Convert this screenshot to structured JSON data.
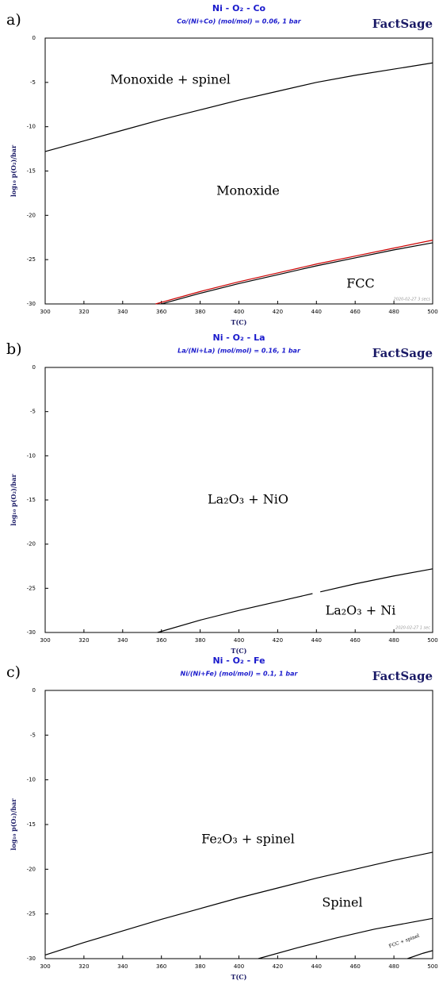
{
  "chart_data": [
    {
      "type": "line",
      "panel_label": "a)",
      "title": "Ni - O₂ - Co",
      "subtitle": "Co/(Ni+Co) (mol/mol) = 0.06, 1 bar",
      "logo": "FactSage",
      "note": "2020-02-27  3 secs",
      "xlabel": "T(C)",
      "ylabel": "log₁₀ p(O₂)/bar",
      "xlim": [
        300,
        500
      ],
      "ylim": [
        -30,
        0
      ],
      "xticks": [
        300,
        320,
        340,
        360,
        380,
        400,
        420,
        440,
        460,
        480,
        500
      ],
      "yticks": [
        0,
        -5,
        -10,
        -15,
        -20,
        -25,
        -30
      ],
      "series": [
        {
          "color": "#000000",
          "x": [
            300,
            320,
            340,
            360,
            380,
            400,
            420,
            440,
            460,
            480,
            500
          ],
          "values": [
            -12.8,
            -11.6,
            -10.4,
            -9.2,
            -8.1,
            -7.0,
            -6.0,
            -5.0,
            -4.2,
            -3.5,
            -2.8
          ]
        },
        {
          "color": "#cc0000",
          "x": [
            357,
            380,
            400,
            420,
            440,
            460,
            480,
            500
          ],
          "values": [
            -30,
            -28.6,
            -27.5,
            -26.5,
            -25.5,
            -24.6,
            -23.7,
            -22.8
          ]
        },
        {
          "color": "#000000",
          "x": [
            360,
            380,
            400,
            420,
            440,
            460,
            480,
            500
          ],
          "values": [
            -30,
            -28.8,
            -27.7,
            -26.7,
            -25.7,
            -24.8,
            -23.9,
            -23.1
          ]
        }
      ],
      "annotations": [
        "Monoxide + spinel",
        "Monoxide",
        "FCC"
      ]
    },
    {
      "type": "line",
      "panel_label": "b)",
      "title": "Ni - O₂ - La",
      "subtitle": "La/(Ni+La) (mol/mol) = 0.16, 1 bar",
      "logo": "FactSage",
      "note": "2020-02-27  1 sec",
      "xlabel": "T(C)",
      "ylabel": "log₁₀ p(O₂)/bar",
      "xlim": [
        300,
        500
      ],
      "ylim": [
        -30,
        0
      ],
      "xticks": [
        300,
        320,
        340,
        360,
        380,
        400,
        420,
        440,
        460,
        480,
        500
      ],
      "yticks": [
        0,
        -5,
        -10,
        -15,
        -20,
        -25,
        -30
      ],
      "series": [
        {
          "color": "#000000",
          "x": [
            358,
            380,
            400,
            420,
            438,
            440,
            442,
            460,
            480,
            500
          ],
          "values": [
            -30,
            -28.6,
            -27.5,
            -26.5,
            -25.6,
            null,
            -25.4,
            -24.5,
            -23.6,
            -22.8
          ]
        }
      ],
      "annotations": [
        "La₂O₃ + NiO",
        "La₂O₃ + Ni"
      ]
    },
    {
      "type": "line",
      "panel_label": "c)",
      "title": "Ni - O₂ - Fe",
      "subtitle": "Ni/(Ni+Fe) (mol/mol) = 0.1, 1 bar",
      "logo": "FactSage",
      "xlabel": "T(C)",
      "ylabel": "log₁₀ p(O₂)/bar",
      "xlim": [
        300,
        500
      ],
      "ylim": [
        -30,
        0
      ],
      "xticks": [
        300,
        320,
        340,
        360,
        380,
        400,
        420,
        440,
        460,
        480,
        500
      ],
      "yticks": [
        0,
        -5,
        -10,
        -15,
        -20,
        -25,
        -30
      ],
      "series": [
        {
          "color": "#000000",
          "x": [
            300,
            320,
            340,
            360,
            380,
            400,
            420,
            440,
            460,
            480,
            500
          ],
          "values": [
            -29.6,
            -28.2,
            -26.9,
            -25.6,
            -24.4,
            -23.2,
            -22.1,
            -21.0,
            -20.0,
            -19.0,
            -18.1
          ]
        },
        {
          "color": "#000000",
          "x": [
            410,
            430,
            450,
            470,
            490,
            500
          ],
          "values": [
            -30,
            -28.8,
            -27.7,
            -26.7,
            -25.9,
            -25.5
          ]
        },
        {
          "color": "#000000",
          "x": [
            487,
            495,
            500
          ],
          "values": [
            -30,
            -29.4,
            -29.1
          ]
        }
      ],
      "annotations": [
        "Fe₂O₃ + spinel",
        "Spinel",
        "FCC + spinel"
      ]
    }
  ]
}
